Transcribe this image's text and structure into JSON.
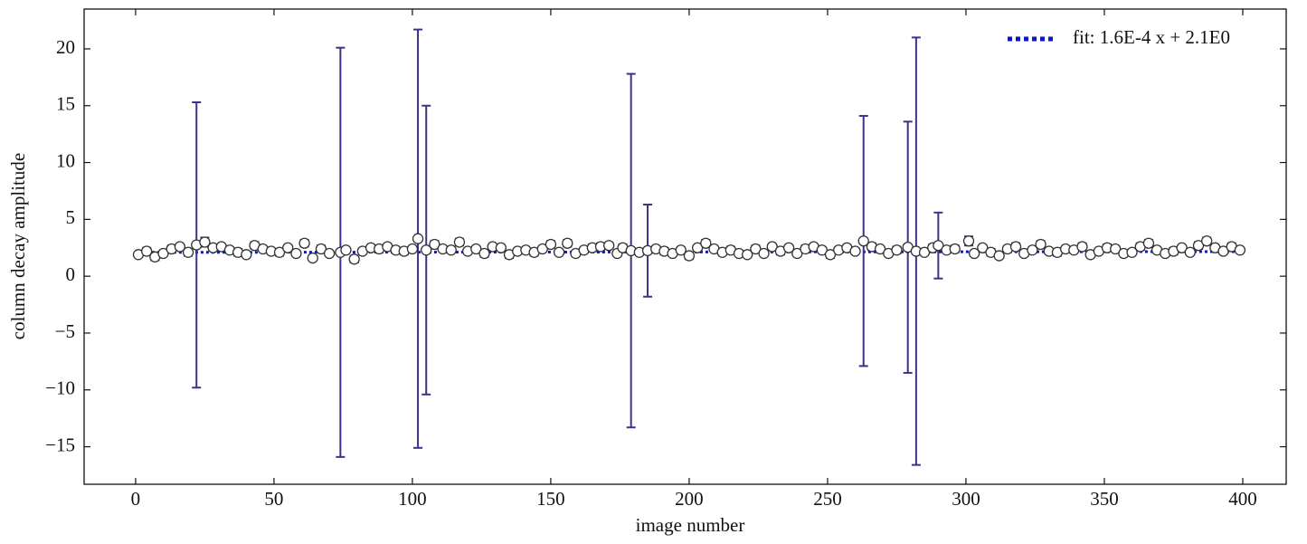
{
  "chart_data": {
    "type": "errorbar",
    "xlabel": "image number",
    "ylabel": "column decay amplitude",
    "xlim": [
      -18.6,
      415.7
    ],
    "ylim": [
      -18.3,
      23.5
    ],
    "xticks": [
      0,
      50,
      100,
      150,
      200,
      250,
      300,
      350,
      400
    ],
    "yticks": [
      {
        "value": -15,
        "label": "−15"
      },
      {
        "value": -10,
        "label": "−10"
      },
      {
        "value": -5,
        "label": "−5"
      },
      0,
      5,
      10,
      15,
      20
    ],
    "legend": "upper right",
    "series": [
      {
        "color": "#3a3388",
        "marker_color": "#ffffff",
        "x": [
          1,
          4,
          7,
          10,
          13,
          16,
          19,
          22,
          25,
          28,
          31,
          34,
          37,
          40,
          43,
          46,
          49,
          52,
          55,
          58,
          61,
          64,
          67,
          70,
          74,
          76,
          79,
          82,
          85,
          88,
          91,
          94,
          97,
          100,
          102,
          105,
          108,
          111,
          114,
          117,
          120,
          123,
          126,
          129,
          132,
          135,
          138,
          141,
          144,
          147,
          150,
          153,
          156,
          159,
          162,
          165,
          168,
          171,
          174,
          176,
          179,
          182,
          185,
          188,
          191,
          194,
          197,
          200,
          203,
          206,
          209,
          212,
          215,
          218,
          221,
          224,
          227,
          230,
          233,
          236,
          239,
          242,
          245,
          248,
          251,
          254,
          257,
          260,
          263,
          266,
          269,
          272,
          275,
          279,
          282,
          285,
          288,
          290,
          293,
          296,
          301,
          303,
          306,
          309,
          312,
          315,
          318,
          321,
          324,
          327,
          330,
          333,
          336,
          339,
          342,
          345,
          348,
          351,
          354,
          357,
          360,
          363,
          366,
          369,
          372,
          375,
          378,
          381,
          384,
          387,
          390,
          393,
          396,
          399
        ],
        "values": [
          1.9,
          2.2,
          1.7,
          2.0,
          2.4,
          2.6,
          2.1,
          2.75,
          3.0,
          2.5,
          2.6,
          2.3,
          2.1,
          1.9,
          2.7,
          2.4,
          2.2,
          2.1,
          2.5,
          2.0,
          2.9,
          1.6,
          2.4,
          2.0,
          2.1,
          2.3,
          1.5,
          2.2,
          2.5,
          2.4,
          2.6,
          2.3,
          2.2,
          2.4,
          3.3,
          2.3,
          2.8,
          2.4,
          2.3,
          3.0,
          2.2,
          2.4,
          2.0,
          2.6,
          2.5,
          1.9,
          2.2,
          2.3,
          2.1,
          2.4,
          2.8,
          2.1,
          2.9,
          2.0,
          2.3,
          2.5,
          2.6,
          2.7,
          2.0,
          2.5,
          2.25,
          2.1,
          2.25,
          2.4,
          2.2,
          2.0,
          2.3,
          1.8,
          2.5,
          2.9,
          2.4,
          2.1,
          2.3,
          2.0,
          1.9,
          2.4,
          2.0,
          2.6,
          2.2,
          2.5,
          2.0,
          2.4,
          2.6,
          2.3,
          1.9,
          2.3,
          2.5,
          2.2,
          3.1,
          2.6,
          2.4,
          2.0,
          2.3,
          2.55,
          2.2,
          2.1,
          2.5,
          2.7,
          2.3,
          2.4,
          3.1,
          2.0,
          2.5,
          2.1,
          1.8,
          2.4,
          2.6,
          2.0,
          2.3,
          2.8,
          2.2,
          2.1,
          2.4,
          2.3,
          2.6,
          1.9,
          2.2,
          2.5,
          2.4,
          2.0,
          2.1,
          2.6,
          2.9,
          2.3,
          2.0,
          2.2,
          2.5,
          2.1,
          2.7,
          3.1,
          2.5,
          2.2,
          2.6,
          2.3
        ],
        "errors": [
          0.2,
          0.3,
          0.3,
          0.2,
          0.3,
          0.2,
          0.3,
          12.55,
          0.4,
          0.2,
          0.2,
          0.2,
          0.3,
          0.2,
          0.3,
          0.2,
          0.2,
          0.3,
          0.2,
          0.2,
          0.3,
          0.2,
          0.3,
          0.2,
          18.0,
          0.2,
          0.3,
          0.2,
          0.2,
          0.3,
          0.2,
          0.2,
          0.3,
          0.2,
          18.4,
          12.7,
          0.3,
          0.2,
          0.2,
          0.3,
          0.2,
          0.2,
          0.3,
          0.2,
          0.2,
          0.3,
          0.2,
          0.2,
          0.3,
          0.2,
          0.3,
          0.2,
          0.3,
          0.2,
          0.2,
          0.3,
          0.3,
          0.2,
          0.2,
          0.3,
          15.55,
          0.2,
          4.05,
          0.2,
          0.3,
          0.2,
          0.2,
          0.3,
          0.2,
          0.3,
          0.2,
          0.2,
          0.3,
          0.2,
          0.2,
          0.3,
          0.2,
          0.2,
          0.3,
          0.2,
          0.2,
          0.3,
          0.2,
          0.2,
          0.3,
          0.2,
          0.2,
          0.2,
          11.0,
          0.3,
          0.2,
          0.2,
          0.3,
          11.05,
          18.8,
          0.2,
          0.3,
          2.9,
          0.2,
          0.3,
          0.4,
          0.2,
          0.2,
          0.3,
          0.2,
          0.2,
          0.3,
          0.2,
          0.2,
          0.3,
          0.2,
          0.3,
          0.2,
          0.2,
          0.3,
          0.2,
          0.2,
          0.3,
          0.2,
          0.2,
          0.2,
          0.3,
          0.3,
          0.2,
          0.2,
          0.3,
          0.2,
          0.2,
          0.3,
          0.3,
          0.2,
          0.2,
          0.3,
          0.2
        ]
      },
      {
        "name": "fit: 1.6E-4 x + 2.1E0",
        "color": "#0a16c8",
        "style": "dotted",
        "x": [
          0,
          400
        ],
        "values": [
          2.1,
          2.164
        ]
      }
    ]
  }
}
